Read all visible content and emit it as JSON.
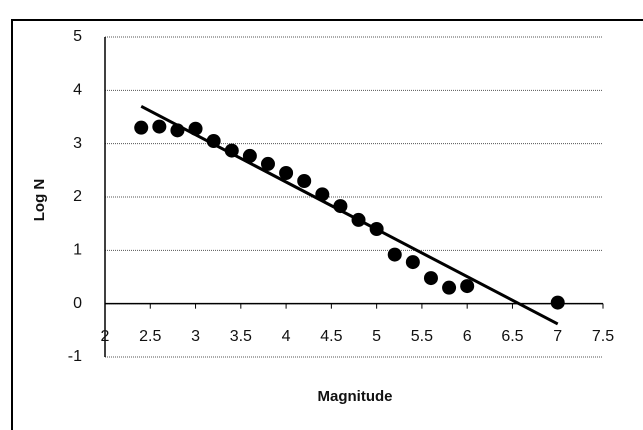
{
  "chart_data": {
    "type": "scatter",
    "x_label": "Magnitude",
    "y_label": "Log N",
    "series": [
      {
        "color": "#000000",
        "x": [
          2.4,
          2.6,
          2.8,
          3.0,
          3.2,
          3.4,
          3.6,
          3.8,
          4.0,
          4.2,
          4.4,
          4.6,
          4.8,
          5.0,
          5.2,
          5.4,
          5.6,
          5.8,
          6.0,
          7.0
        ],
        "values": [
          3.3,
          3.32,
          3.25,
          3.28,
          3.05,
          2.87,
          2.77,
          2.62,
          2.45,
          2.3,
          2.05,
          1.83,
          1.57,
          1.4,
          0.92,
          0.78,
          0.48,
          0.3,
          0.33,
          0.02
        ]
      }
    ],
    "trendline": {
      "x": [
        2.4,
        7.0
      ],
      "values": [
        3.7,
        -0.38
      ],
      "color": "#000000"
    },
    "xlim": [
      2,
      7.5
    ],
    "xticks": [
      2,
      2.5,
      3,
      3.5,
      4,
      4.5,
      5,
      5.5,
      6,
      6.5,
      7,
      7.5
    ],
    "ylim": [
      -1,
      5
    ],
    "yticks": [
      -1,
      0,
      1,
      2,
      3,
      4,
      5
    ],
    "grid": true
  }
}
